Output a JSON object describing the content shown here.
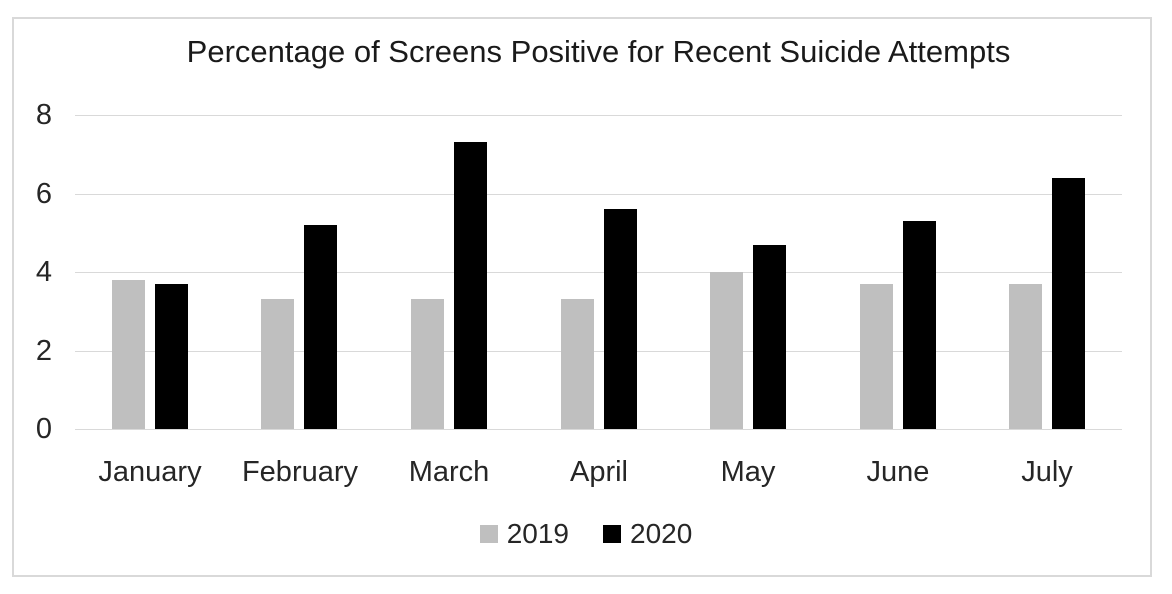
{
  "chart_data": {
    "type": "bar",
    "title": "Percentage of Screens Positive for Recent Suicide Attempts",
    "categories": [
      "January",
      "February",
      "March",
      "April",
      "May",
      "June",
      "July"
    ],
    "series": [
      {
        "name": "2019",
        "color": "#bfbfbf",
        "values": [
          3.8,
          3.3,
          3.3,
          3.3,
          4.0,
          3.7,
          3.7
        ]
      },
      {
        "name": "2020",
        "color": "#000000",
        "values": [
          3.7,
          5.2,
          7.3,
          5.6,
          4.7,
          5.3,
          6.4
        ]
      }
    ],
    "xlabel": "",
    "ylabel": "",
    "ylim": [
      0,
      8
    ],
    "yticks": [
      0,
      2,
      4,
      6,
      8
    ],
    "grid": true,
    "legend_position": "bottom"
  },
  "colors": {
    "background": "#ffffff",
    "frame_border": "#d9d9d9",
    "gridline": "#d9d9d9",
    "title_text": "#1a1a1a",
    "axis_text": "#262626",
    "series_2019": "#bfbfbf",
    "series_2020": "#000000"
  }
}
